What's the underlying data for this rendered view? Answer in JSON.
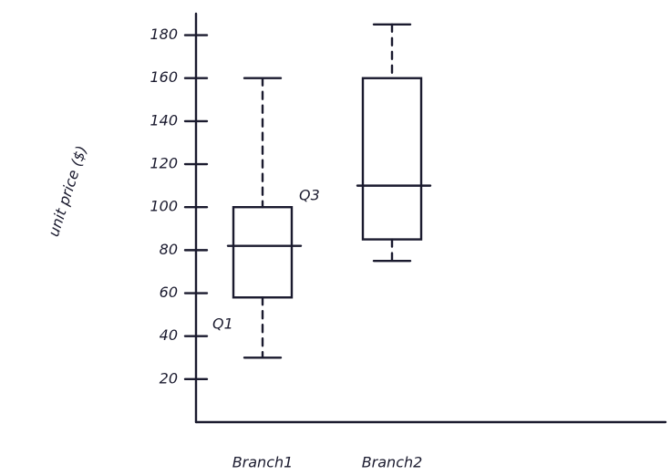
{
  "chart_data": {
    "type": "box",
    "y_label": "unit price ($)",
    "categories": [
      "Branch1",
      "Branch2"
    ],
    "boxes": [
      {
        "min": 30,
        "q1": 58,
        "median": 82,
        "q3": 100,
        "max": 160
      },
      {
        "min": 75,
        "q1": 85,
        "median": 110,
        "q3": 160,
        "max": 185
      }
    ],
    "color": "#1a1a2e",
    "annotations": [
      "Q1",
      "Q3"
    ],
    "ylim": [
      0,
      190
    ],
    "yticks": [
      20,
      40,
      60,
      80,
      100,
      120,
      140,
      160,
      180
    ]
  }
}
